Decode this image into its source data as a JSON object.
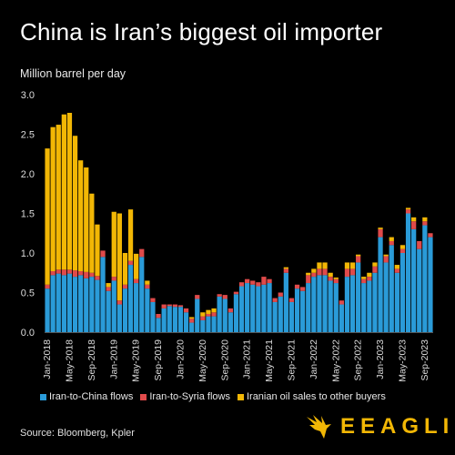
{
  "header": {
    "title": "China is Iran’s biggest oil importer",
    "unit": "Million barrel per day"
  },
  "legend": [
    {
      "label": "Iran-to-China flows",
      "color": "#2a9bd8"
    },
    {
      "label": "Iran-to-Syria flows",
      "color": "#e04a4a"
    },
    {
      "label": "Iranian oil sales to other buyers",
      "color": "#f2b705"
    }
  ],
  "footer": {
    "source": "Source: Bloomberg, Kpler",
    "brand": "EEAGLI",
    "brand_icon": "eagle-icon"
  },
  "chart_data": {
    "type": "bar",
    "stacked": true,
    "ylabel": "Million barrel per day",
    "ylim": [
      0,
      3.0
    ],
    "yticks": [
      "0.0",
      "0.5",
      "1.0",
      "1.5",
      "2.0",
      "2.5",
      "3.0"
    ],
    "grid": false,
    "legend_position": "bottom",
    "x_tick_labels": [
      {
        "index": 0,
        "label": "Jan-2018"
      },
      {
        "index": 4,
        "label": "May-2018"
      },
      {
        "index": 8,
        "label": "Sep-2018"
      },
      {
        "index": 12,
        "label": "Jan-2019"
      },
      {
        "index": 16,
        "label": "May-2019"
      },
      {
        "index": 20,
        "label": "Sep-2019"
      },
      {
        "index": 24,
        "label": "Jan-2020"
      },
      {
        "index": 28,
        "label": "May-2020"
      },
      {
        "index": 32,
        "label": "Sep-2020"
      },
      {
        "index": 36,
        "label": "Jan-2021"
      },
      {
        "index": 40,
        "label": "May-2021"
      },
      {
        "index": 44,
        "label": "Sep-2021"
      },
      {
        "index": 48,
        "label": "Jan-2022"
      },
      {
        "index": 52,
        "label": "May-2022"
      },
      {
        "index": 56,
        "label": "Sep-2022"
      },
      {
        "index": 60,
        "label": "Jan-2023"
      },
      {
        "index": 64,
        "label": "May-2023"
      },
      {
        "index": 68,
        "label": "Sep-2023"
      }
    ],
    "categories": [
      "Jan-2018",
      "Feb-2018",
      "Mar-2018",
      "Apr-2018",
      "May-2018",
      "Jun-2018",
      "Jul-2018",
      "Aug-2018",
      "Sep-2018",
      "Oct-2018",
      "Nov-2018",
      "Dec-2018",
      "Jan-2019",
      "Feb-2019",
      "Mar-2019",
      "Apr-2019",
      "May-2019",
      "Jun-2019",
      "Jul-2019",
      "Aug-2019",
      "Sep-2019",
      "Oct-2019",
      "Nov-2019",
      "Dec-2019",
      "Jan-2020",
      "Feb-2020",
      "Mar-2020",
      "Apr-2020",
      "May-2020",
      "Jun-2020",
      "Jul-2020",
      "Aug-2020",
      "Sep-2020",
      "Oct-2020",
      "Nov-2020",
      "Dec-2020",
      "Jan-2021",
      "Feb-2021",
      "Mar-2021",
      "Apr-2021",
      "May-2021",
      "Jun-2021",
      "Jul-2021",
      "Aug-2021",
      "Sep-2021",
      "Oct-2021",
      "Nov-2021",
      "Dec-2021",
      "Jan-2022",
      "Feb-2022",
      "Mar-2022",
      "Apr-2022",
      "May-2022",
      "Jun-2022",
      "Jul-2022",
      "Aug-2022",
      "Sep-2022",
      "Oct-2022",
      "Nov-2022",
      "Dec-2022",
      "Jan-2023",
      "Feb-2023",
      "Mar-2023",
      "Apr-2023",
      "May-2023",
      "Jun-2023",
      "Jul-2023",
      "Aug-2023",
      "Sep-2023",
      "Oct-2023"
    ],
    "series": [
      {
        "name": "Iran-to-China flows",
        "color": "#2a9bd8",
        "values": [
          0.55,
          0.72,
          0.74,
          0.72,
          0.74,
          0.7,
          0.72,
          0.68,
          0.7,
          0.66,
          0.95,
          0.52,
          0.65,
          0.35,
          0.55,
          0.85,
          0.62,
          0.95,
          0.55,
          0.38,
          0.18,
          0.3,
          0.33,
          0.32,
          0.32,
          0.25,
          0.12,
          0.42,
          0.15,
          0.2,
          0.2,
          0.45,
          0.42,
          0.25,
          0.48,
          0.58,
          0.62,
          0.6,
          0.58,
          0.6,
          0.62,
          0.38,
          0.45,
          0.75,
          0.38,
          0.55,
          0.52,
          0.62,
          0.7,
          0.72,
          0.72,
          0.65,
          0.62,
          0.35,
          0.7,
          0.72,
          0.88,
          0.62,
          0.65,
          0.75,
          1.2,
          0.88,
          1.1,
          0.75,
          1.0,
          1.5,
          1.3,
          1.05,
          1.35,
          1.2
        ]
      },
      {
        "name": "Iran-to-Syria flows",
        "color": "#e04a4a",
        "values": [
          0.05,
          0.05,
          0.05,
          0.07,
          0.05,
          0.08,
          0.05,
          0.08,
          0.05,
          0.05,
          0.08,
          0.05,
          0.05,
          0.05,
          0.05,
          0.05,
          0.05,
          0.1,
          0.05,
          0.05,
          0.05,
          0.05,
          0.02,
          0.03,
          0.02,
          0.05,
          0.05,
          0.05,
          0.05,
          0.03,
          0.05,
          0.03,
          0.05,
          0.05,
          0.03,
          0.05,
          0.05,
          0.05,
          0.05,
          0.1,
          0.05,
          0.05,
          0.05,
          0.05,
          0.05,
          0.05,
          0.05,
          0.1,
          0.05,
          0.08,
          0.08,
          0.05,
          0.05,
          0.05,
          0.1,
          0.08,
          0.08,
          0.05,
          0.05,
          0.08,
          0.1,
          0.08,
          0.05,
          0.05,
          0.05,
          0.05,
          0.1,
          0.1,
          0.05,
          0.05
        ]
      },
      {
        "name": "Iranian oil sales to other buyers",
        "color": "#f2b705",
        "values": [
          1.72,
          1.82,
          1.83,
          1.96,
          1.98,
          1.7,
          1.4,
          1.32,
          1.0,
          0.65,
          0.0,
          0.05,
          0.82,
          1.1,
          0.4,
          0.65,
          0.32,
          0.0,
          0.05,
          0.0,
          0.0,
          0.0,
          0.0,
          0.0,
          0.0,
          0.0,
          0.02,
          0.0,
          0.05,
          0.05,
          0.05,
          0.0,
          0.0,
          0.0,
          0.0,
          0.0,
          0.0,
          0.0,
          0.0,
          0.0,
          0.0,
          0.0,
          0.0,
          0.02,
          0.0,
          0.0,
          0.0,
          0.03,
          0.05,
          0.08,
          0.08,
          0.05,
          0.02,
          0.0,
          0.08,
          0.08,
          0.02,
          0.03,
          0.05,
          0.05,
          0.02,
          0.02,
          0.05,
          0.05,
          0.05,
          0.02,
          0.05,
          0.0,
          0.05,
          0.0
        ]
      }
    ]
  }
}
